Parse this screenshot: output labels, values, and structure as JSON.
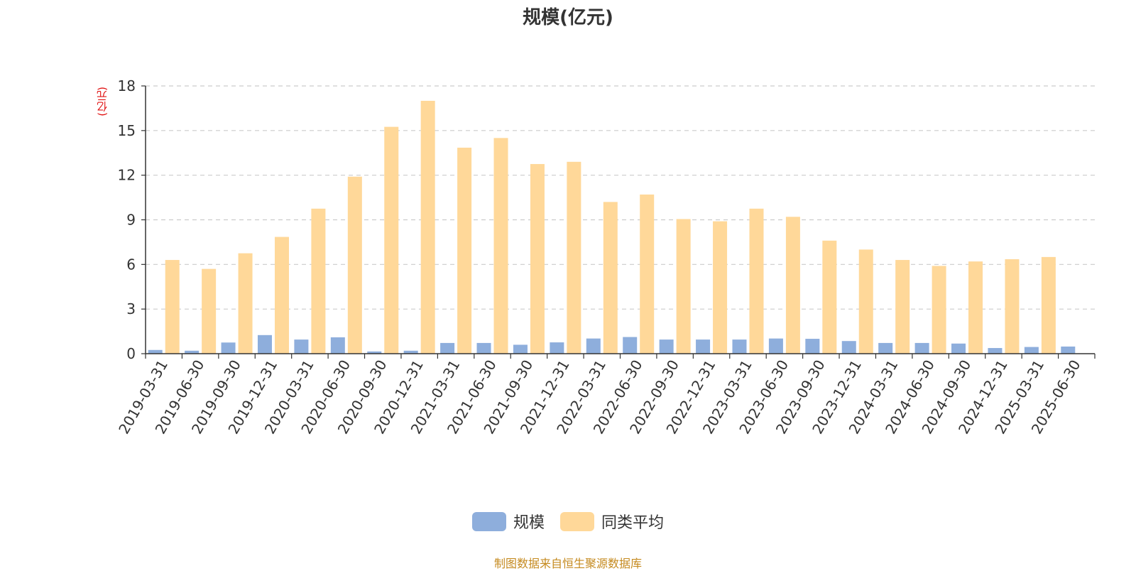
{
  "source": "制图数据来自恒生聚源数据库",
  "chart_data": {
    "type": "bar",
    "title": "规模(亿元)",
    "ylabel": "(亿元)",
    "xlabel": "",
    "ylim": [
      0,
      18
    ],
    "yticks": [
      0,
      3,
      6,
      9,
      12,
      15,
      18
    ],
    "grid": true,
    "legend_position": "bottom",
    "categories": [
      "2019-03-31",
      "2019-06-30",
      "2019-09-30",
      "2019-12-31",
      "2020-03-31",
      "2020-06-30",
      "2020-09-30",
      "2020-12-31",
      "2021-03-31",
      "2021-06-30",
      "2021-09-30",
      "2021-12-31",
      "2022-03-31",
      "2022-06-30",
      "2022-09-30",
      "2022-12-31",
      "2023-03-31",
      "2023-06-30",
      "2023-09-30",
      "2023-12-31",
      "2024-03-31",
      "2024-06-30",
      "2024-09-30",
      "2024-12-31",
      "2025-03-31",
      "2025-06-30"
    ],
    "series": [
      {
        "name": "规模",
        "color": "#8eaedc",
        "values": [
          0.25,
          0.2,
          0.75,
          1.25,
          0.95,
          1.1,
          0.15,
          0.2,
          0.72,
          0.72,
          0.6,
          0.76,
          1.02,
          1.12,
          0.95,
          0.95,
          0.95,
          1.02,
          1.0,
          0.85,
          0.72,
          0.72,
          0.68,
          0.38,
          0.45,
          0.48
        ]
      },
      {
        "name": "同类平均",
        "color": "#ffd899",
        "values": [
          6.3,
          5.7,
          6.75,
          7.85,
          9.75,
          11.9,
          15.25,
          17.0,
          13.85,
          14.5,
          12.75,
          12.9,
          10.2,
          10.7,
          9.05,
          8.9,
          9.75,
          9.2,
          7.6,
          7.0,
          6.3,
          5.9,
          6.2,
          6.35,
          6.5,
          null
        ]
      }
    ]
  }
}
